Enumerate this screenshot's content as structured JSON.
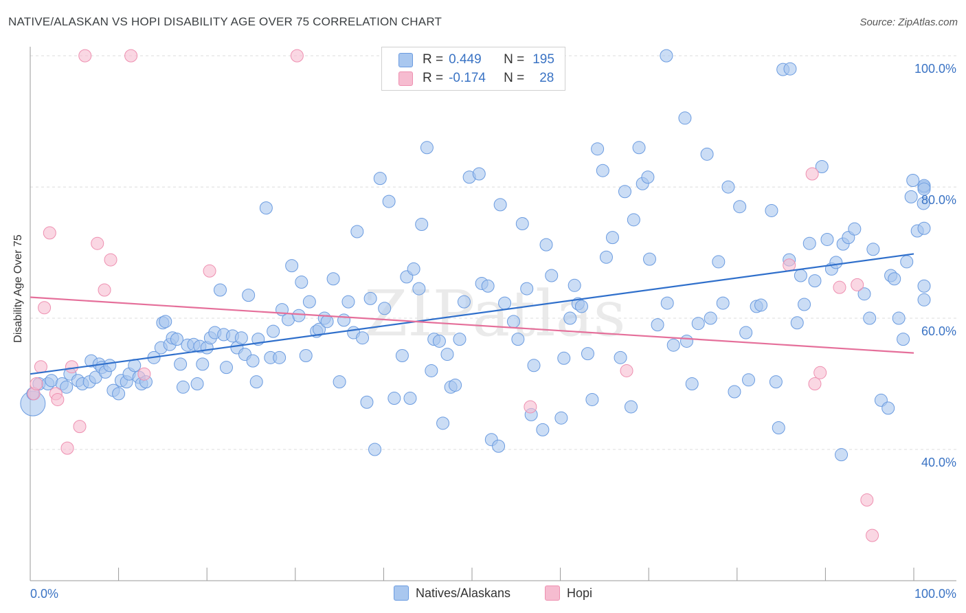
{
  "title": "NATIVE/ALASKAN VS HOPI DISABILITY AGE OVER 75 CORRELATION CHART",
  "source": "Source: ZipAtlas.com",
  "watermark": "ZIPatlas",
  "legend": {
    "rows": [
      {
        "r_label": "R =",
        "r_value": "0.449",
        "n_label": "N =",
        "n_value": "195",
        "color": "#a9c7ef"
      },
      {
        "r_label": "R =",
        "r_value": "-0.174",
        "n_label": "N =",
        "n_value": "28",
        "color": "#f6bcd0"
      }
    ]
  },
  "bottom_legend": [
    {
      "label": "Natives/Alaskans",
      "color": "#a9c7ef"
    },
    {
      "label": "Hopi",
      "color": "#f6bcd0"
    }
  ],
  "chart_data": {
    "type": "scatter",
    "title": "NATIVE/ALASKAN VS HOPI DISABILITY AGE OVER 75 CORRELATION CHART",
    "xlabel": "",
    "ylabel": "Disability Age Over 75",
    "xlim": [
      0,
      100
    ],
    "ylim": [
      20,
      102
    ],
    "x_tick_labels": [
      "0.0%",
      "100.0%"
    ],
    "y_ticks": [
      40,
      60,
      80,
      100
    ],
    "y_tick_labels": [
      "40.0%",
      "60.0%",
      "80.0%",
      "100.0%"
    ],
    "grid": true,
    "colors": {
      "natives_fill": "#a9c7ef",
      "natives_stroke": "#6a9be0",
      "natives_line": "#2f6fcb",
      "hopi_fill": "#f6bcd0",
      "hopi_stroke": "#ee8fb0",
      "hopi_line": "#e56f9a",
      "tick_label": "#3a73c4"
    },
    "series": [
      {
        "name": "Natives/Alaskans",
        "trend": {
          "x0": 0,
          "y0": 51.5,
          "x1": 100,
          "y1": 69.8
        },
        "points": [
          [
            0.3,
            47
          ],
          [
            0.3,
            48.5
          ],
          [
            1,
            50
          ],
          [
            2,
            50
          ],
          [
            2.4,
            50.5
          ],
          [
            3.6,
            50
          ],
          [
            4.1,
            49.5
          ],
          [
            4.5,
            51.5
          ],
          [
            5.4,
            50.5
          ],
          [
            5.9,
            50
          ],
          [
            6.7,
            50.3
          ],
          [
            6.9,
            53.5
          ],
          [
            7.4,
            51
          ],
          [
            7.8,
            53
          ],
          [
            8.1,
            52.5
          ],
          [
            8.5,
            51.8
          ],
          [
            9,
            52.8
          ],
          [
            9.4,
            49
          ],
          [
            10,
            48.5
          ],
          [
            10.3,
            50.5
          ],
          [
            10.9,
            50.3
          ],
          [
            11.2,
            51.5
          ],
          [
            11.8,
            52.8
          ],
          [
            12.3,
            51
          ],
          [
            12.6,
            50
          ],
          [
            13.1,
            50.3
          ],
          [
            14,
            54
          ],
          [
            14.8,
            55.5
          ],
          [
            15,
            59.3
          ],
          [
            15.3,
            59.5
          ],
          [
            15.8,
            56
          ],
          [
            16.1,
            57
          ],
          [
            16.6,
            56.8
          ],
          [
            17,
            53
          ],
          [
            17.3,
            49.5
          ],
          [
            17.8,
            55.9
          ],
          [
            18.5,
            56
          ],
          [
            18.9,
            50
          ],
          [
            19.2,
            55.7
          ],
          [
            19.5,
            53
          ],
          [
            20,
            55.5
          ],
          [
            20.4,
            57
          ],
          [
            20.9,
            57.8
          ],
          [
            21.5,
            64.3
          ],
          [
            21.9,
            57.5
          ],
          [
            22.2,
            52.5
          ],
          [
            22.9,
            57.3
          ],
          [
            23.4,
            55.5
          ],
          [
            23.9,
            57
          ],
          [
            24.3,
            54.5
          ],
          [
            24.7,
            63.5
          ],
          [
            25.2,
            53.5
          ],
          [
            25.6,
            50.3
          ],
          [
            25.8,
            56.8
          ],
          [
            26.7,
            76.8
          ],
          [
            27.2,
            54
          ],
          [
            27.5,
            58
          ],
          [
            28.2,
            54
          ],
          [
            28.5,
            61.3
          ],
          [
            29.2,
            59.8
          ],
          [
            29.6,
            68
          ],
          [
            30.4,
            60.4
          ],
          [
            30.7,
            65.5
          ],
          [
            31.2,
            54.3
          ],
          [
            31.6,
            62.5
          ],
          [
            32.4,
            58
          ],
          [
            32.7,
            58.3
          ],
          [
            33.3,
            60
          ],
          [
            33.6,
            59.5
          ],
          [
            34.3,
            66
          ],
          [
            35,
            50.3
          ],
          [
            35.5,
            59.7
          ],
          [
            36,
            62.5
          ],
          [
            36.6,
            57.8
          ],
          [
            37,
            73.2
          ],
          [
            37.6,
            57
          ],
          [
            38.1,
            47.2
          ],
          [
            38.5,
            63
          ],
          [
            39,
            40
          ],
          [
            39.6,
            81.3
          ],
          [
            40.1,
            61.5
          ],
          [
            40.6,
            77.8
          ],
          [
            41.2,
            47.8
          ],
          [
            42.1,
            54.3
          ],
          [
            42.6,
            66.3
          ],
          [
            43,
            47.8
          ],
          [
            43.4,
            67.5
          ],
          [
            44,
            64.5
          ],
          [
            44.3,
            74.3
          ],
          [
            44.9,
            86
          ],
          [
            45.4,
            52
          ],
          [
            45.7,
            56.8
          ],
          [
            46.3,
            56.5
          ],
          [
            46.7,
            44
          ],
          [
            47.2,
            54.5
          ],
          [
            47.6,
            49.5
          ],
          [
            48.1,
            49.8
          ],
          [
            48.6,
            56.8
          ],
          [
            49.1,
            62.5
          ],
          [
            49.7,
            81.5
          ],
          [
            50.8,
            82
          ],
          [
            51.1,
            65.3
          ],
          [
            51.8,
            64.9
          ],
          [
            52.2,
            41.5
          ],
          [
            53,
            40.5
          ],
          [
            53.2,
            77.3
          ],
          [
            53.7,
            62.3
          ],
          [
            54.7,
            59.5
          ],
          [
            55.2,
            56.8
          ],
          [
            55.7,
            74.4
          ],
          [
            56.2,
            64.5
          ],
          [
            56.7,
            45.3
          ],
          [
            57,
            52.8
          ],
          [
            58,
            43
          ],
          [
            58.4,
            71.2
          ],
          [
            59,
            66.5
          ],
          [
            60.1,
            44.8
          ],
          [
            60.4,
            53.9
          ],
          [
            61.1,
            60
          ],
          [
            61.6,
            65
          ],
          [
            62,
            62.2
          ],
          [
            62.4,
            61.8
          ],
          [
            63.1,
            54.6
          ],
          [
            63.6,
            47.6
          ],
          [
            64.2,
            85.8
          ],
          [
            64.8,
            82.5
          ],
          [
            65.2,
            69.3
          ],
          [
            65.9,
            72.3
          ],
          [
            66.8,
            54
          ],
          [
            67.3,
            79.3
          ],
          [
            68,
            46.5
          ],
          [
            68.3,
            75
          ],
          [
            68.9,
            86
          ],
          [
            69.3,
            80.5
          ],
          [
            69.9,
            81.5
          ],
          [
            70.1,
            69
          ],
          [
            71,
            59
          ],
          [
            72.1,
            62.3
          ],
          [
            72.8,
            55.9
          ],
          [
            74.1,
            90.5
          ],
          [
            74.3,
            56.5
          ],
          [
            74.9,
            50
          ],
          [
            75.6,
            59.2
          ],
          [
            76.6,
            85
          ],
          [
            77,
            60
          ],
          [
            77.9,
            68.6
          ],
          [
            78.4,
            62.3
          ],
          [
            79,
            80
          ],
          [
            79.7,
            48.8
          ],
          [
            80.3,
            77
          ],
          [
            81,
            57.8
          ],
          [
            81.3,
            50.6
          ],
          [
            82.2,
            61.8
          ],
          [
            82.7,
            62
          ],
          [
            83.9,
            76.4
          ],
          [
            84.4,
            50.3
          ],
          [
            84.7,
            43.3
          ],
          [
            85.2,
            97.9
          ],
          [
            85.9,
            68.9
          ],
          [
            86.8,
            59.3
          ],
          [
            87.2,
            66.5
          ],
          [
            87.6,
            62.1
          ],
          [
            88.2,
            71.4
          ],
          [
            88.8,
            65.7
          ],
          [
            89.6,
            83.1
          ],
          [
            90.2,
            72
          ],
          [
            90.7,
            67.5
          ],
          [
            91.2,
            68.5
          ],
          [
            91.8,
            39.2
          ],
          [
            92,
            71.3
          ],
          [
            92.6,
            72.3
          ],
          [
            93.3,
            73.6
          ],
          [
            94.4,
            63.7
          ],
          [
            95,
            60
          ],
          [
            95.4,
            70.5
          ],
          [
            96.3,
            47.5
          ],
          [
            97.1,
            46.3
          ],
          [
            97.4,
            66.5
          ],
          [
            97.8,
            66
          ],
          [
            98.3,
            60
          ],
          [
            98.8,
            56.8
          ],
          [
            99.2,
            68.6
          ],
          [
            99.7,
            78.5
          ],
          [
            99.9,
            81
          ],
          [
            100.4,
            73.3
          ],
          [
            101.1,
            77.5
          ],
          [
            101.5,
            80
          ],
          [
            101.9,
            73.7
          ],
          [
            102.4,
            80.2
          ],
          [
            103.5,
            64.9
          ],
          [
            103.9,
            62.8
          ],
          [
            104.3,
            79.7
          ],
          [
            72,
            100
          ],
          [
            86,
            98
          ]
        ]
      },
      {
        "name": "Hopi",
        "trend": {
          "x0": 0,
          "y0": 63.2,
          "x1": 100,
          "y1": 54.7
        },
        "points": [
          [
            0.4,
            48.5
          ],
          [
            0.7,
            50
          ],
          [
            1.2,
            52.6
          ],
          [
            1.6,
            61.6
          ],
          [
            2.2,
            73
          ],
          [
            2.9,
            48.5
          ],
          [
            3.1,
            47.6
          ],
          [
            4.2,
            40.2
          ],
          [
            4.7,
            52.6
          ],
          [
            5.6,
            43.5
          ],
          [
            6.2,
            100
          ],
          [
            7.6,
            71.4
          ],
          [
            8.4,
            64.3
          ],
          [
            9.1,
            68.9
          ],
          [
            11.4,
            100
          ],
          [
            12.9,
            51.5
          ],
          [
            20.3,
            67.2
          ],
          [
            30.2,
            100
          ],
          [
            56.6,
            46.5
          ],
          [
            67.5,
            52
          ],
          [
            85.9,
            68.1
          ],
          [
            88.5,
            82
          ],
          [
            88.8,
            50
          ],
          [
            89.4,
            51.7
          ],
          [
            91.6,
            64.7
          ],
          [
            93.6,
            65.1
          ],
          [
            94.7,
            32.3
          ],
          [
            95.3,
            26.9
          ]
        ]
      }
    ]
  }
}
